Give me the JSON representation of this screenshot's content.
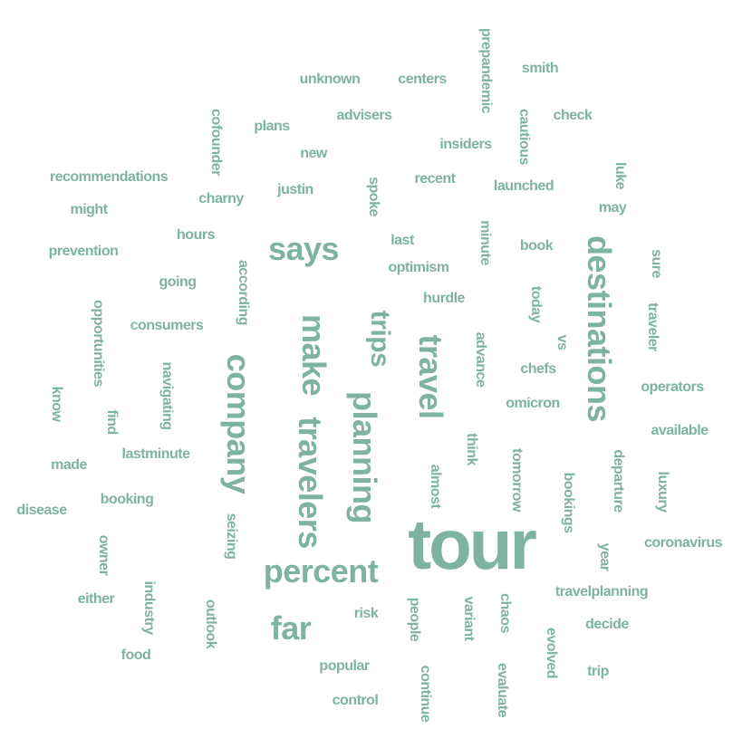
{
  "colors": {
    "word": "#7db3a0",
    "background": "#ffffff"
  },
  "words": [
    {
      "text": "tour",
      "weight": 10,
      "rotate": false
    },
    {
      "text": "company",
      "weight": 6,
      "rotate": true
    },
    {
      "text": "make",
      "weight": 6,
      "rotate": true
    },
    {
      "text": "travelers",
      "weight": 6,
      "rotate": true
    },
    {
      "text": "planning",
      "weight": 6,
      "rotate": true
    },
    {
      "text": "travel",
      "weight": 6,
      "rotate": true
    },
    {
      "text": "destinations",
      "weight": 6,
      "rotate": true
    },
    {
      "text": "percent",
      "weight": 6,
      "rotate": false
    },
    {
      "text": "says",
      "weight": 6,
      "rotate": false
    },
    {
      "text": "far",
      "weight": 6,
      "rotate": false
    },
    {
      "text": "trips",
      "weight": 5,
      "rotate": true
    },
    {
      "text": "prepandemic",
      "weight": 2,
      "rotate": true
    },
    {
      "text": "smith",
      "weight": 2,
      "rotate": false
    },
    {
      "text": "unknown",
      "weight": 2,
      "rotate": false
    },
    {
      "text": "centers",
      "weight": 2,
      "rotate": false
    },
    {
      "text": "advisers",
      "weight": 2,
      "rotate": false
    },
    {
      "text": "cautious",
      "weight": 2,
      "rotate": true
    },
    {
      "text": "check",
      "weight": 2,
      "rotate": false
    },
    {
      "text": "cofounder",
      "weight": 2,
      "rotate": true
    },
    {
      "text": "plans",
      "weight": 2,
      "rotate": false
    },
    {
      "text": "insiders",
      "weight": 2,
      "rotate": false
    },
    {
      "text": "new",
      "weight": 2,
      "rotate": false
    },
    {
      "text": "luke",
      "weight": 2,
      "rotate": true
    },
    {
      "text": "recommendations",
      "weight": 2,
      "rotate": false
    },
    {
      "text": "spoke",
      "weight": 2,
      "rotate": true
    },
    {
      "text": "recent",
      "weight": 2,
      "rotate": false
    },
    {
      "text": "launched",
      "weight": 2,
      "rotate": false
    },
    {
      "text": "justin",
      "weight": 2,
      "rotate": false
    },
    {
      "text": "charny",
      "weight": 2,
      "rotate": false
    },
    {
      "text": "may",
      "weight": 2,
      "rotate": false
    },
    {
      "text": "might",
      "weight": 2,
      "rotate": false
    },
    {
      "text": "minute",
      "weight": 2,
      "rotate": true
    },
    {
      "text": "hours",
      "weight": 2,
      "rotate": false
    },
    {
      "text": "last",
      "weight": 2,
      "rotate": false
    },
    {
      "text": "book",
      "weight": 2,
      "rotate": false
    },
    {
      "text": "sure",
      "weight": 2,
      "rotate": true
    },
    {
      "text": "prevention",
      "weight": 2,
      "rotate": false
    },
    {
      "text": "according",
      "weight": 2,
      "rotate": true
    },
    {
      "text": "optimism",
      "weight": 2,
      "rotate": false
    },
    {
      "text": "going",
      "weight": 2,
      "rotate": false
    },
    {
      "text": "today",
      "weight": 2,
      "rotate": true
    },
    {
      "text": "hurdle",
      "weight": 2,
      "rotate": false
    },
    {
      "text": "opportunities",
      "weight": 2,
      "rotate": true
    },
    {
      "text": "traveler",
      "weight": 2,
      "rotate": true
    },
    {
      "text": "consumers",
      "weight": 2,
      "rotate": false
    },
    {
      "text": "vs",
      "weight": 2,
      "rotate": true
    },
    {
      "text": "advance",
      "weight": 2,
      "rotate": true
    },
    {
      "text": "chefs",
      "weight": 2,
      "rotate": false
    },
    {
      "text": "operators",
      "weight": 2,
      "rotate": false
    },
    {
      "text": "navigating",
      "weight": 2,
      "rotate": true
    },
    {
      "text": "know",
      "weight": 2,
      "rotate": true
    },
    {
      "text": "omicron",
      "weight": 2,
      "rotate": false
    },
    {
      "text": "find",
      "weight": 2,
      "rotate": true
    },
    {
      "text": "available",
      "weight": 2,
      "rotate": false
    },
    {
      "text": "think",
      "weight": 2,
      "rotate": true
    },
    {
      "text": "lastminute",
      "weight": 2,
      "rotate": false
    },
    {
      "text": "made",
      "weight": 2,
      "rotate": false
    },
    {
      "text": "departure",
      "weight": 2,
      "rotate": true
    },
    {
      "text": "almost",
      "weight": 2,
      "rotate": true
    },
    {
      "text": "tomorrow",
      "weight": 2,
      "rotate": true
    },
    {
      "text": "luxury",
      "weight": 2,
      "rotate": true
    },
    {
      "text": "bookings",
      "weight": 2,
      "rotate": true
    },
    {
      "text": "booking",
      "weight": 2,
      "rotate": false
    },
    {
      "text": "disease",
      "weight": 2,
      "rotate": false
    },
    {
      "text": "seizing",
      "weight": 2,
      "rotate": true
    },
    {
      "text": "owner",
      "weight": 2,
      "rotate": true
    },
    {
      "text": "year",
      "weight": 2,
      "rotate": true
    },
    {
      "text": "coronavirus",
      "weight": 2,
      "rotate": false
    },
    {
      "text": "industry",
      "weight": 2,
      "rotate": true
    },
    {
      "text": "travelplanning",
      "weight": 2,
      "rotate": false
    },
    {
      "text": "either",
      "weight": 2,
      "rotate": false
    },
    {
      "text": "outlook",
      "weight": 2,
      "rotate": true
    },
    {
      "text": "risk",
      "weight": 2,
      "rotate": false
    },
    {
      "text": "people",
      "weight": 2,
      "rotate": true
    },
    {
      "text": "variant",
      "weight": 2,
      "rotate": true
    },
    {
      "text": "chaos",
      "weight": 2,
      "rotate": true
    },
    {
      "text": "decide",
      "weight": 2,
      "rotate": false
    },
    {
      "text": "evolved",
      "weight": 2,
      "rotate": true
    },
    {
      "text": "food",
      "weight": 2,
      "rotate": false
    },
    {
      "text": "popular",
      "weight": 2,
      "rotate": false
    },
    {
      "text": "continue",
      "weight": 2,
      "rotate": true
    },
    {
      "text": "evaluate",
      "weight": 2,
      "rotate": true
    },
    {
      "text": "trip",
      "weight": 2,
      "rotate": false
    },
    {
      "text": "control",
      "weight": 2,
      "rotate": false
    }
  ]
}
